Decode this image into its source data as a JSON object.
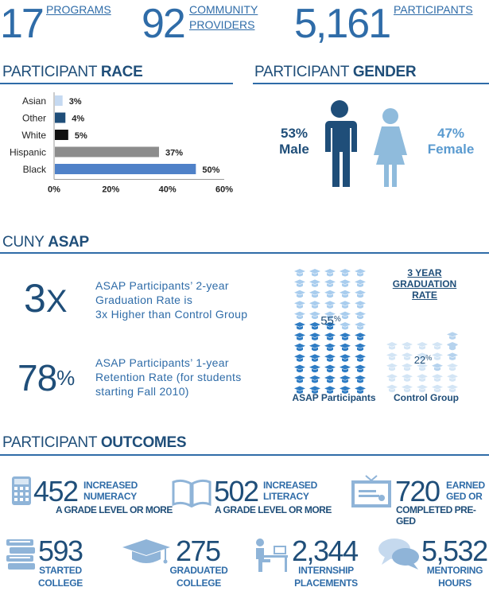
{
  "top_stats": [
    {
      "number": "17",
      "label": "PROGRAMS"
    },
    {
      "number": "92",
      "label_line1": "COMMUNITY",
      "label_line2": "PROVIDERS"
    },
    {
      "number": "5,161",
      "label": "PARTICIPANTS"
    }
  ],
  "race": {
    "title_light": "PARTICIPANT",
    "title_bold": "RACE",
    "chart_data": {
      "type": "bar",
      "orientation": "horizontal",
      "categories": [
        "Asian",
        "Other",
        "White",
        "Hispanic",
        "Black"
      ],
      "values": [
        3,
        4,
        5,
        37,
        50
      ],
      "value_labels": [
        "3%",
        "4%",
        "5%",
        "37%",
        "50%"
      ],
      "colors": [
        "#c5d9f1",
        "#1f4e79",
        "#111111",
        "#8c8c8c",
        "#4f81c8"
      ],
      "xlim": [
        0,
        60
      ],
      "ticks": [
        0,
        20,
        40,
        60
      ],
      "tick_labels": [
        "0%",
        "20%",
        "40%",
        "60%"
      ]
    }
  },
  "gender": {
    "title_light": "PARTICIPANT",
    "title_bold": "GENDER",
    "male_pct": "53%",
    "male_label": "Male",
    "female_pct": "47%",
    "female_label": "Female"
  },
  "asap": {
    "title_light": "CUNY",
    "title_bold": "ASAP",
    "stat1_number": "3",
    "stat1_suffix": "X",
    "stat1_line1": "ASAP Participants’ 2-year",
    "stat1_line2": "Graduation Rate is",
    "stat1_line3": "3x Higher than Control Group",
    "stat2_number": "78",
    "stat2_suffix": "%",
    "stat2_line1": "ASAP Participants’ 1-year",
    "stat2_line2": "Retention Rate (for students",
    "stat2_line3": "starting Fall 2010)",
    "grad_title_line1": "3 YEAR",
    "grad_title_line2": "GRADUATION",
    "grad_title_line3": "RATE",
    "asap_value": 55,
    "asap_pct_num": "55",
    "asap_pct_sym": "%",
    "asap_label": "ASAP Participants",
    "control_value": 22,
    "control_pct_num": "22",
    "control_pct_sym": "%",
    "control_label": "Control Group"
  },
  "outcomes": {
    "title_light": "PARTICIPANT",
    "title_bold": "OUTCOMES",
    "row1": [
      {
        "number": "452",
        "line1": "INCREASED",
        "line2": "NUMERACY",
        "line3": "A GRADE LEVEL OR MORE",
        "icon": "calculator-icon"
      },
      {
        "number": "502",
        "line1": "INCREASED",
        "line2": "LITERACY",
        "line3": "A GRADE LEVEL OR MORE",
        "icon": "open-book-icon"
      },
      {
        "number": "720",
        "line1": "EARNED",
        "line2": "GED OR",
        "line3": "COMPLETED PRE-GED",
        "icon": "certificate-icon"
      }
    ],
    "row2": [
      {
        "number": "593",
        "line1": "STARTED",
        "line2": "COLLEGE",
        "icon": "book-stack-icon"
      },
      {
        "number": "275",
        "line1": "GRADUATED",
        "line2": "COLLEGE",
        "icon": "graduation-cap-icon"
      },
      {
        "number": "2,344",
        "line1": "INTERNSHIP",
        "line2": "PLACEMENTS",
        "icon": "desk-worker-icon"
      },
      {
        "number": "5,532",
        "line1": "MENTORING",
        "line2": "HOURS",
        "icon": "speech-bubbles-icon"
      }
    ]
  }
}
